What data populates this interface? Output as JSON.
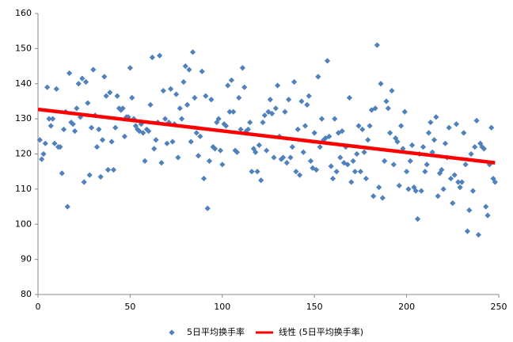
{
  "chart_data": {
    "type": "scatter",
    "series": [
      {
        "name": "5日平均换手率",
        "color": "#4f81bd",
        "x": [
          1,
          2,
          3,
          4,
          5,
          6,
          7,
          8,
          9,
          10,
          11,
          12,
          13,
          14,
          15,
          16,
          17,
          18,
          19,
          20,
          21,
          22,
          23,
          24,
          25,
          26,
          27,
          28,
          29,
          30,
          31,
          32,
          33,
          34,
          35,
          36,
          37,
          38,
          39,
          40,
          41,
          42,
          43,
          44,
          45,
          46,
          47,
          48,
          49,
          50,
          51,
          52,
          53,
          54,
          55,
          56,
          57,
          58,
          59,
          60,
          61,
          62,
          63,
          64,
          65,
          66,
          67,
          68,
          69,
          70,
          71,
          72,
          73,
          74,
          75,
          76,
          77,
          78,
          79,
          80,
          81,
          82,
          83,
          84,
          85,
          86,
          87,
          88,
          89,
          90,
          91,
          92,
          93,
          94,
          95,
          96,
          97,
          98,
          99,
          100,
          101,
          102,
          103,
          104,
          105,
          106,
          107,
          108,
          109,
          110,
          111,
          112,
          113,
          114,
          115,
          116,
          117,
          118,
          119,
          120,
          121,
          122,
          123,
          124,
          125,
          126,
          127,
          128,
          129,
          130,
          131,
          132,
          133,
          134,
          135,
          136,
          137,
          138,
          139,
          140,
          141,
          142,
          143,
          144,
          145,
          146,
          147,
          148,
          149,
          150,
          151,
          152,
          153,
          154,
          155,
          156,
          157,
          158,
          159,
          160,
          161,
          162,
          163,
          164,
          165,
          166,
          167,
          168,
          169,
          170,
          171,
          172,
          173,
          174,
          175,
          176,
          177,
          178,
          179,
          180,
          181,
          182,
          183,
          184,
          185,
          186,
          187,
          188,
          189,
          190,
          191,
          192,
          193,
          194,
          195,
          196,
          197,
          198,
          199,
          200,
          201,
          202,
          203,
          204,
          205,
          206,
          207,
          208,
          209,
          210,
          211,
          212,
          213,
          214,
          215,
          216,
          217,
          218,
          219,
          220,
          221,
          222,
          223,
          224,
          225,
          226,
          227,
          228,
          229,
          230,
          231,
          232,
          233,
          234,
          235,
          236,
          237,
          238,
          239,
          240,
          241,
          242,
          243,
          244,
          245,
          246,
          247,
          248
        ],
        "values": [
          124,
          118.5,
          120,
          123,
          139,
          130,
          128,
          130,
          123,
          138.5,
          122,
          122,
          114.5,
          127,
          132,
          105,
          143,
          129,
          128.5,
          126.5,
          133,
          140,
          130.5,
          141.5,
          112,
          140.5,
          134.5,
          114,
          127.5,
          144,
          131,
          122,
          127,
          113.5,
          124,
          142,
          136.5,
          115.5,
          137.5,
          123.5,
          115.5,
          127.5,
          136.5,
          133,
          132.5,
          133,
          125,
          130.5,
          130.5,
          144.5,
          136,
          130,
          128,
          127,
          126.5,
          128.5,
          126,
          118,
          127,
          126.5,
          134,
          147.5,
          121.5,
          124,
          129,
          148,
          117.5,
          138,
          130,
          123,
          129,
          138.5,
          123.5,
          128.5,
          137,
          119,
          133,
          130,
          140.5,
          145,
          134,
          144,
          123.5,
          149,
          136,
          126,
          119.5,
          125,
          143.5,
          113,
          136.5,
          104.5,
          118,
          135.5,
          122,
          121.5,
          129,
          130,
          121,
          117,
          128.5,
          128,
          139.5,
          132,
          141,
          132,
          121,
          120.5,
          136,
          127,
          144.5,
          139,
          126.5,
          127,
          129,
          115,
          121.5,
          120.5,
          115,
          122.5,
          112.5,
          129,
          131,
          121,
          132,
          135.5,
          131.5,
          119,
          133,
          139.5,
          125,
          118.5,
          119,
          132,
          117.5,
          135.5,
          119,
          122,
          140.5,
          115,
          127,
          114,
          135,
          120.5,
          128,
          134,
          136.5,
          118,
          116,
          126,
          115.5,
          142,
          122,
          130,
          124,
          124.5,
          146.5,
          125,
          116.5,
          113,
          130,
          115,
          126,
          119,
          126.5,
          117.5,
          122,
          117,
          136,
          112,
          118,
          115,
          120,
          128,
          115,
          127,
          120.5,
          113,
          124,
          128,
          132.5,
          108,
          133,
          151,
          110.5,
          140,
          107.5,
          118,
          135,
          133,
          126,
          138,
          117,
          124.5,
          123.5,
          111,
          128,
          121.5,
          132,
          115,
          110,
          118,
          122.5,
          110.5,
          109.5,
          101.5,
          120,
          109.5,
          122,
          115,
          117,
          126,
          129,
          120.5,
          124,
          130.5,
          108,
          114.5,
          115.5,
          110,
          123,
          119,
          127.5,
          113,
          106,
          114,
          128.5,
          112,
          110.5,
          112,
          126,
          117,
          98,
          104,
          120,
          109.5,
          122,
          129.5,
          97,
          123,
          122,
          121.5,
          105,
          102.5,
          117,
          127.5,
          113,
          112
        ]
      }
    ],
    "trendline": {
      "name": "线性 (5日平均换手率)",
      "color": "#ff0000",
      "x": [
        0,
        248
      ],
      "values": [
        132.7,
        117.5
      ]
    },
    "xlim": [
      0,
      250
    ],
    "xticks": [
      0,
      50,
      100,
      150,
      200,
      250
    ],
    "ylim": [
      80,
      160
    ],
    "yticks": [
      80,
      90,
      100,
      110,
      120,
      130,
      140,
      150,
      160
    ],
    "grid": false,
    "legend": "bottom"
  }
}
